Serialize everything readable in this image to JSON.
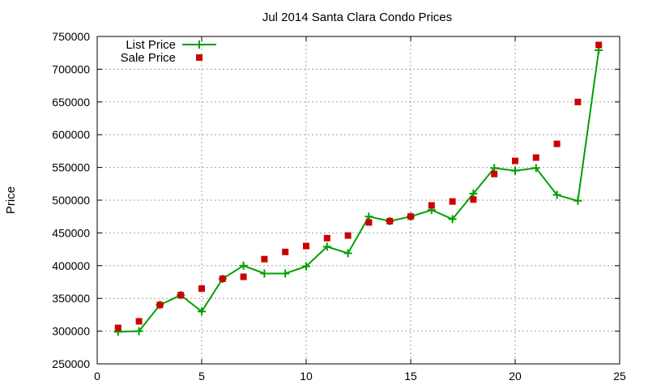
{
  "chart_data": {
    "type": "line",
    "title": "Jul 2014 Santa Clara Condo Prices",
    "xlabel": "",
    "ylabel": "Price",
    "xlim": [
      0,
      25
    ],
    "ylim": [
      250000,
      750000
    ],
    "xticks": [
      0,
      5,
      10,
      15,
      20,
      25
    ],
    "yticks": [
      250000,
      300000,
      350000,
      400000,
      450000,
      500000,
      550000,
      600000,
      650000,
      700000,
      750000
    ],
    "grid": true,
    "legend_position": "top-left",
    "series": [
      {
        "name": "List Price",
        "style": "line-with-plus-markers",
        "color": "#00a000",
        "x": [
          1,
          2,
          3,
          4,
          5,
          6,
          7,
          8,
          9,
          10,
          11,
          12,
          13,
          14,
          15,
          16,
          17,
          18,
          19,
          20,
          21,
          22,
          23,
          24
        ],
        "values": [
          299000,
          300000,
          340000,
          355000,
          330000,
          380000,
          400000,
          388000,
          388000,
          399000,
          429000,
          419000,
          475000,
          468000,
          475000,
          485000,
          471000,
          510000,
          549000,
          545000,
          549000,
          508000,
          499000,
          729000
        ]
      },
      {
        "name": "Sale Price",
        "style": "square-markers",
        "color": "#cc0000",
        "x": [
          1,
          2,
          3,
          4,
          5,
          6,
          7,
          8,
          9,
          10,
          11,
          12,
          13,
          14,
          15,
          16,
          17,
          18,
          19,
          20,
          21,
          22,
          23,
          24
        ],
        "values": [
          305000,
          315000,
          340000,
          355000,
          365000,
          380000,
          383000,
          410000,
          421000,
          430000,
          442000,
          446000,
          466000,
          468000,
          475000,
          492000,
          498000,
          501000,
          540000,
          560000,
          565000,
          586000,
          650000,
          737000
        ]
      }
    ]
  }
}
